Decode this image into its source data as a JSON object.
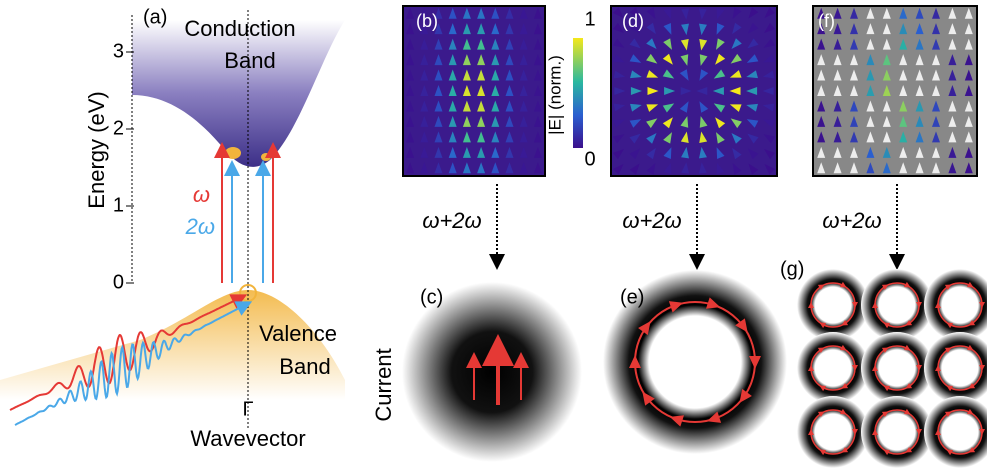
{
  "panel_a": {
    "label": "(a)",
    "conduction_band": [
      "Conduction",
      "Band"
    ],
    "valence_band": [
      "Valence",
      "Band"
    ],
    "y_axis_label": "Energy (eV)",
    "y_ticks": [
      0,
      1,
      2,
      3
    ],
    "omega": "ω",
    "two_omega": "2ω",
    "gamma": "Γ",
    "x_axis_label": "Wavevector"
  },
  "panel_labels": [
    "(b)",
    "(c)",
    "(d)",
    "(e)",
    "(f)",
    "(g)"
  ],
  "colorbar": {
    "label": "|E| (norm.)",
    "ticks": [
      0,
      1
    ]
  },
  "mixing_labels": [
    "ω+2ω",
    "ω+2ω",
    "ω+2ω"
  ],
  "current_label": "Current"
}
